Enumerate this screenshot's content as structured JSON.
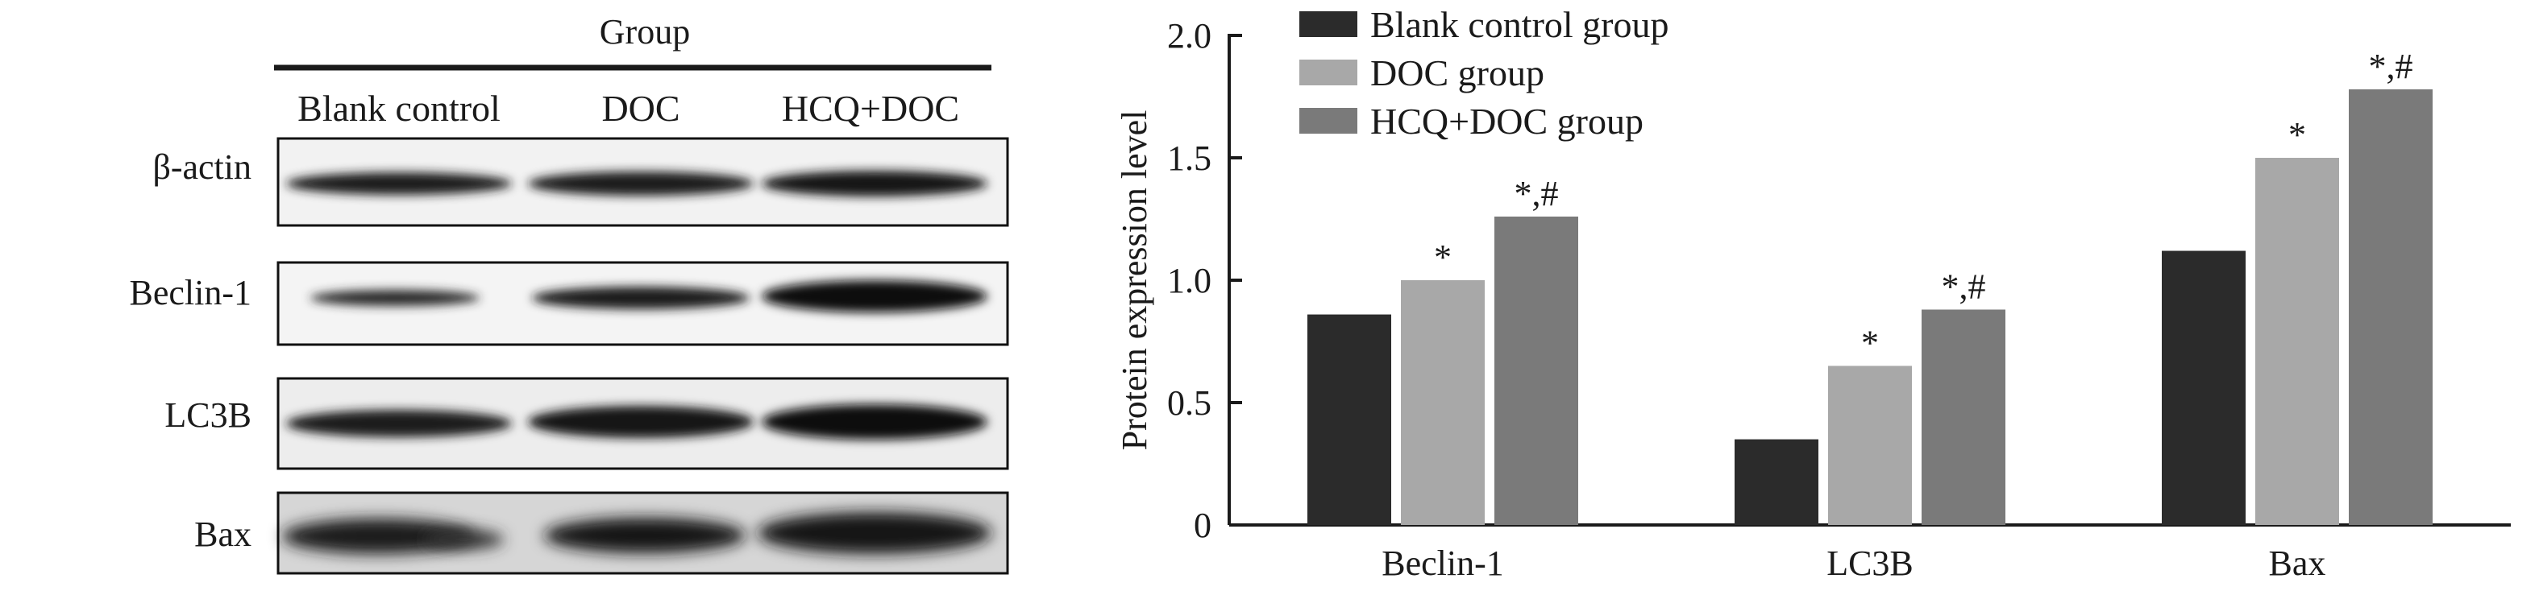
{
  "blot": {
    "group_title": "Group",
    "column_labels": [
      "Blank control",
      "DOC",
      "HCQ+DOC"
    ],
    "row_labels": [
      "β-actin",
      "Beclin-1",
      "LC3B",
      "Bax"
    ]
  },
  "chart_data": {
    "type": "bar",
    "categories": [
      "Beclin-1",
      "LC3B",
      "Bax"
    ],
    "series": [
      {
        "name": "Blank control group",
        "values": [
          0.86,
          0.35,
          1.12
        ],
        "color": "#2b2b2b"
      },
      {
        "name": "DOC group",
        "values": [
          1.0,
          0.65,
          1.5
        ],
        "color": "#a8a8a8"
      },
      {
        "name": "HCQ+DOC group",
        "values": [
          1.26,
          0.88,
          1.78
        ],
        "color": "#7a7a7a"
      }
    ],
    "annotations": [
      [
        "",
        "*",
        "*,#"
      ],
      [
        "",
        "*",
        "*,#"
      ],
      [
        "",
        "*",
        "*,#"
      ]
    ],
    "title": "",
    "xlabel": "",
    "ylabel": "Protein expression level",
    "ylim": [
      0,
      2.0
    ],
    "yticks": [
      "0",
      "0.5",
      "1.0",
      "1.5",
      "2.0"
    ],
    "legend_position": "top-left",
    "grid": false
  }
}
